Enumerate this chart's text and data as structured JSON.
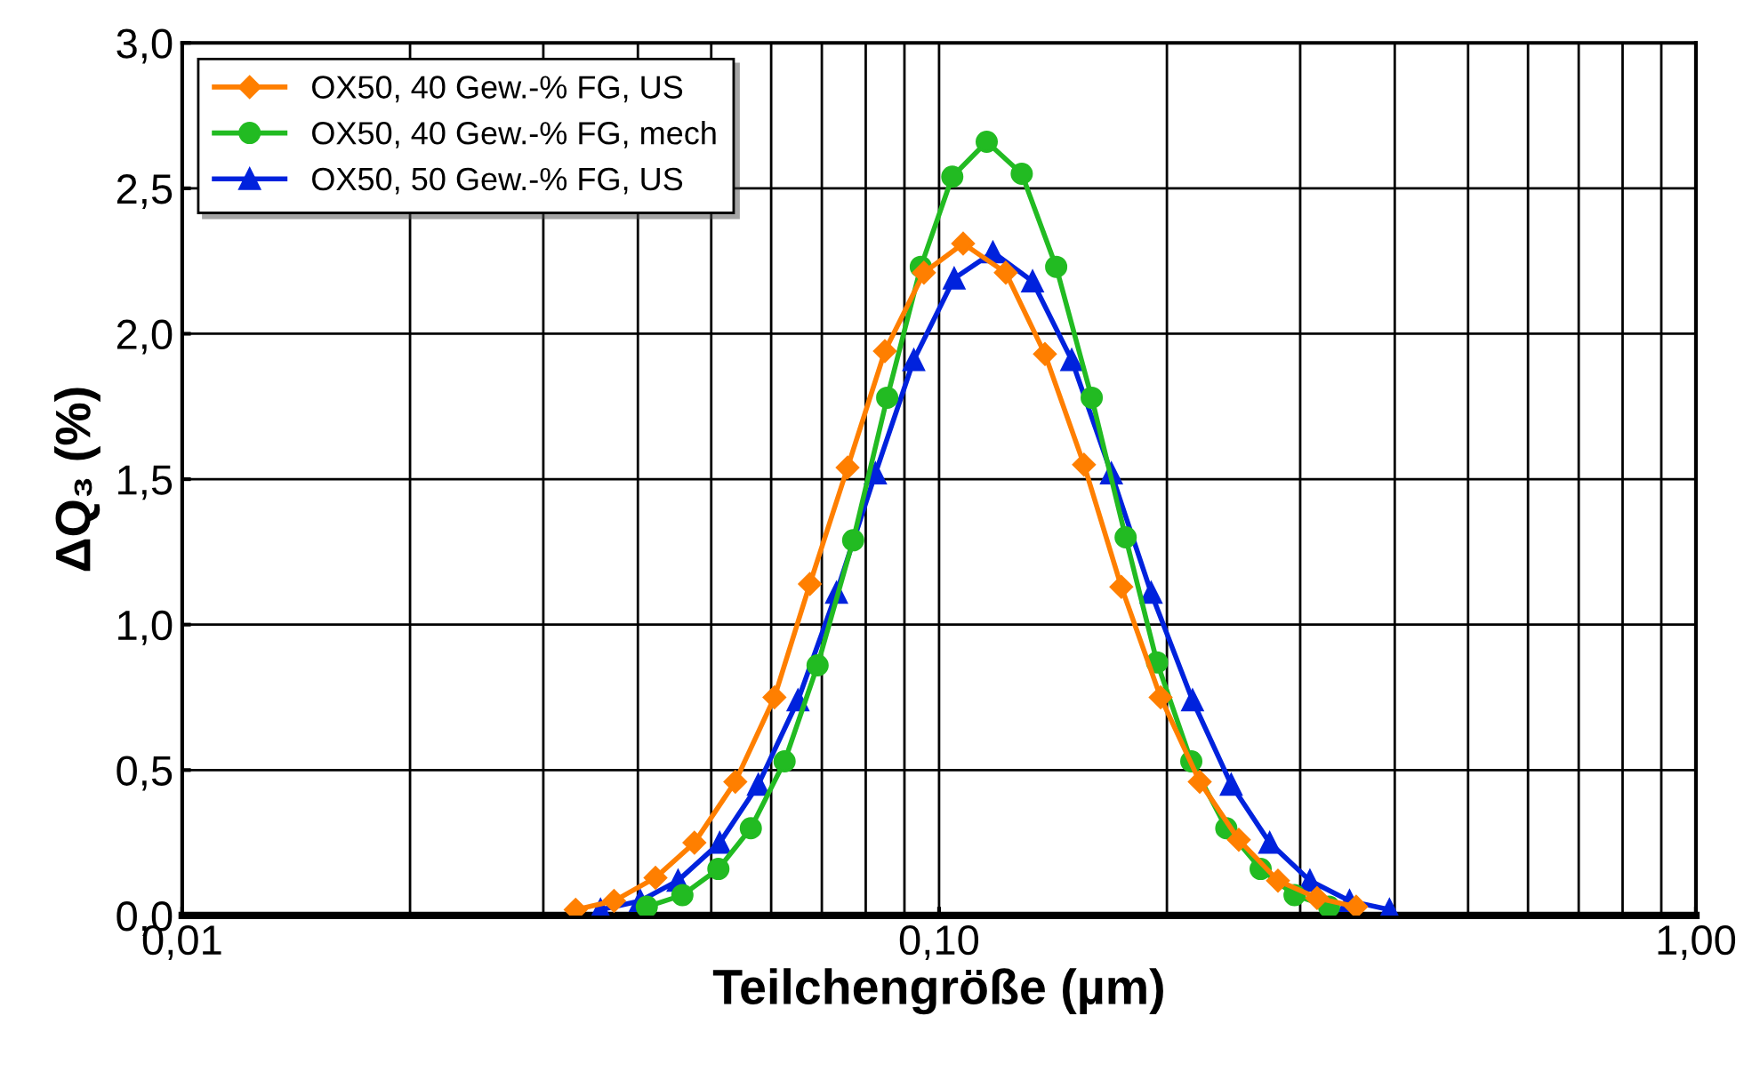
{
  "chart_data": {
    "type": "line",
    "xlabel": "Teilchengröße (µm)",
    "ylabel": "ΔQ₃ (%)",
    "log": "x",
    "xlim": [
      0.01,
      1.0
    ],
    "xticks": [
      {
        "value": 0.01,
        "label": "0,01"
      },
      {
        "value": 0.1,
        "label": "0,10"
      },
      {
        "value": 1.0,
        "label": "1,00"
      }
    ],
    "ylim": [
      0,
      3.0
    ],
    "yticks": [
      {
        "value": 0,
        "label": "0,0"
      },
      {
        "value": 0.5,
        "label": "0,5"
      },
      {
        "value": 1.0,
        "label": "1,0"
      },
      {
        "value": 1.5,
        "label": "1,5"
      },
      {
        "value": 2.0,
        "label": "2,0"
      },
      {
        "value": 2.5,
        "label": "2,5"
      },
      {
        "value": 3.0,
        "label": "3,0"
      }
    ],
    "grid": true,
    "legend": "top left",
    "series": [
      {
        "name": "OX50, 40 Gew.-% FG, US",
        "color": "#ff7f00",
        "marker": "diamond",
        "x": [
          0.0331,
          0.0372,
          0.0422,
          0.0475,
          0.0538,
          0.0606,
          0.0675,
          0.0757,
          0.0848,
          0.0955,
          0.1076,
          0.1225,
          0.138,
          0.1554,
          0.1741,
          0.1962,
          0.221,
          0.2489,
          0.2804,
          0.3158,
          0.3557
        ],
        "values": [
          0.02,
          0.05,
          0.13,
          0.25,
          0.46,
          0.75,
          1.14,
          1.54,
          1.94,
          2.21,
          2.31,
          2.21,
          1.93,
          1.55,
          1.13,
          0.75,
          0.46,
          0.26,
          0.12,
          0.06,
          0.03
        ]
      },
      {
        "name": "OX50, 40 Gew.-% FG, mech",
        "color": "#22bb22",
        "marker": "circle",
        "x": [
          0.0411,
          0.0458,
          0.0511,
          0.0564,
          0.0625,
          0.0691,
          0.077,
          0.0854,
          0.0946,
          0.1041,
          0.1156,
          0.1286,
          0.1428,
          0.1591,
          0.1764,
          0.1941,
          0.2154,
          0.2396,
          0.266,
          0.2949,
          0.3275
        ],
        "values": [
          0.03,
          0.07,
          0.16,
          0.3,
          0.53,
          0.86,
          1.29,
          1.78,
          2.23,
          2.54,
          2.66,
          2.55,
          2.23,
          1.78,
          1.3,
          0.87,
          0.53,
          0.3,
          0.16,
          0.07,
          0.03
        ]
      },
      {
        "name": "OX50, 50 Gew.-% FG, US",
        "color": "#0022dd",
        "marker": "triangle",
        "x": [
          0.0357,
          0.0403,
          0.0452,
          0.0513,
          0.0577,
          0.0651,
          0.0732,
          0.0824,
          0.0926,
          0.1047,
          0.1178,
          0.1329,
          0.1497,
          0.1689,
          0.1906,
          0.2162,
          0.2432,
          0.2734,
          0.309,
          0.3486,
          0.3936
        ],
        "values": [
          0.02,
          0.05,
          0.12,
          0.25,
          0.45,
          0.74,
          1.11,
          1.52,
          1.91,
          2.19,
          2.28,
          2.18,
          1.91,
          1.52,
          1.11,
          0.74,
          0.45,
          0.25,
          0.12,
          0.05,
          0.02
        ]
      }
    ]
  }
}
